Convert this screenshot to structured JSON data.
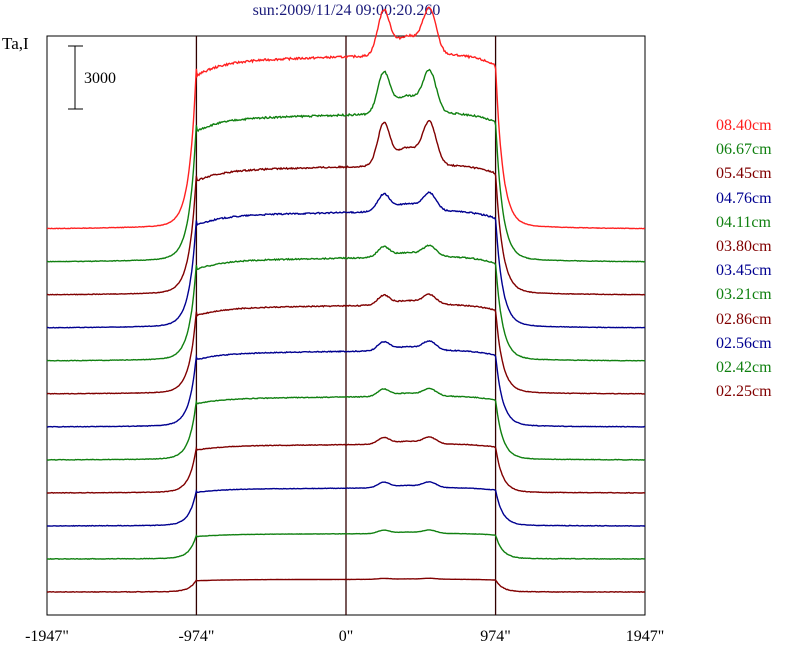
{
  "title": "sun:2009/11/24 09:00:20.260",
  "ylabel": "Ta,I",
  "scale_label": "3000",
  "colors": {
    "red": "#ff2020",
    "green": "#108010",
    "maroon": "#800000",
    "navy": "#000090"
  },
  "chart_data": {
    "type": "line",
    "x_ticks": [
      "-1947\"",
      "-974\"",
      "0\"",
      "974\"",
      "1947\""
    ],
    "xlim": [
      -1947,
      1947
    ],
    "vertical_lines": [
      -974,
      0,
      974
    ],
    "limb_arcsec": 974,
    "scale_bar": 3000,
    "series": [
      {
        "name": "08.40cm",
        "color": "#ff2020",
        "base": 0,
        "disk": 8200,
        "peak": 2000
      },
      {
        "name": "06.67cm",
        "color": "#108010",
        "base": 0,
        "disk": 7000,
        "peak": 1850
      },
      {
        "name": "05.45cm",
        "color": "#800000",
        "base": 0,
        "disk": 6100,
        "peak": 1900
      },
      {
        "name": "04.76cm",
        "color": "#000090",
        "base": 0,
        "disk": 5500,
        "peak": 780
      },
      {
        "name": "04.11cm",
        "color": "#108010",
        "base": 0,
        "disk": 4900,
        "peak": 470
      },
      {
        "name": "03.80cm",
        "color": "#800000",
        "base": 0,
        "disk": 4200,
        "peak": 440
      },
      {
        "name": "03.45cm",
        "color": "#000090",
        "base": 0,
        "disk": 3600,
        "peak": 400
      },
      {
        "name": "03.21cm",
        "color": "#108010",
        "base": 0,
        "disk": 3000,
        "peak": 330
      },
      {
        "name": "02.86cm",
        "color": "#800000",
        "base": 0,
        "disk": 2300,
        "peak": 300
      },
      {
        "name": "02.56cm",
        "color": "#000090",
        "base": 0,
        "disk": 1800,
        "peak": 250
      },
      {
        "name": "02.42cm",
        "color": "#108010",
        "base": 0,
        "disk": 1200,
        "peak": 150
      },
      {
        "name": "02.25cm",
        "color": "#800000",
        "base": 0,
        "disk": 600,
        "peak": 40
      }
    ]
  }
}
